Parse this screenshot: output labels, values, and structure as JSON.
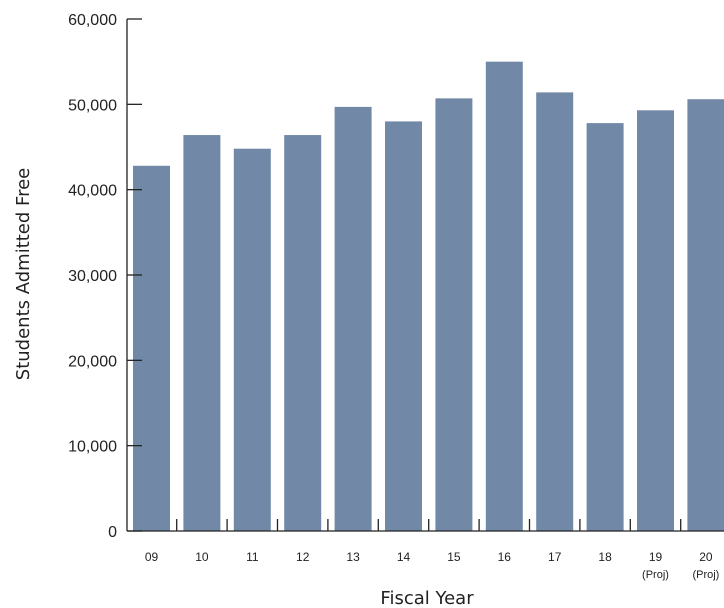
{
  "chart_data": {
    "type": "bar",
    "categories": [
      "09",
      "10",
      "11",
      "12",
      "13",
      "14",
      "15",
      "16",
      "17",
      "18",
      "19",
      "20"
    ],
    "category_sublabels": [
      "",
      "",
      "",
      "",
      "",
      "",
      "",
      "",
      "",
      "",
      "(Proj)",
      "(Proj)"
    ],
    "values": [
      42800,
      46400,
      44800,
      46400,
      49700,
      48000,
      50700,
      55000,
      51400,
      47800,
      49300,
      50600
    ],
    "xlabel": "Fiscal Year",
    "ylabel": "Students Admitted Free",
    "ylim": [
      0,
      60000
    ],
    "yticks": [
      0,
      10000,
      20000,
      30000,
      40000,
      50000,
      60000
    ],
    "ytick_labels": [
      "0",
      "10,000",
      "20,000",
      "30,000",
      "40,000",
      "50,000",
      "60,000"
    ],
    "grid": false,
    "bar_color": "#7189a6",
    "axis_color": "#222222"
  }
}
